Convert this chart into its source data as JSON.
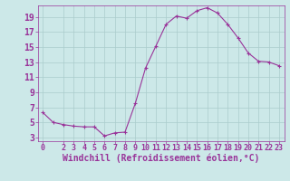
{
  "x": [
    0,
    1,
    2,
    3,
    4,
    5,
    6,
    7,
    8,
    9,
    10,
    11,
    12,
    13,
    14,
    15,
    16,
    17,
    18,
    19,
    20,
    21,
    22,
    23
  ],
  "y": [
    6.3,
    5.0,
    4.7,
    4.5,
    4.4,
    4.4,
    3.2,
    3.6,
    3.7,
    7.5,
    12.2,
    15.1,
    18.0,
    19.1,
    18.8,
    19.8,
    20.2,
    19.5,
    18.0,
    16.2,
    14.2,
    13.1,
    13.0,
    12.5
  ],
  "xlabel": "Windchill (Refroidissement éolien,°C)",
  "xlim": [
    -0.5,
    23.5
  ],
  "ylim": [
    2.5,
    20.5
  ],
  "yticks": [
    3,
    5,
    7,
    9,
    11,
    13,
    15,
    17,
    19
  ],
  "xticks": [
    0,
    2,
    3,
    4,
    5,
    6,
    7,
    8,
    9,
    10,
    11,
    12,
    13,
    14,
    15,
    16,
    17,
    18,
    19,
    20,
    21,
    22,
    23
  ],
  "line_color": "#993399",
  "marker": "+",
  "bg_color": "#cce8e8",
  "grid_color": "#aacccc",
  "label_color": "#993399",
  "tick_fontsize": 6,
  "xlabel_fontsize": 7
}
